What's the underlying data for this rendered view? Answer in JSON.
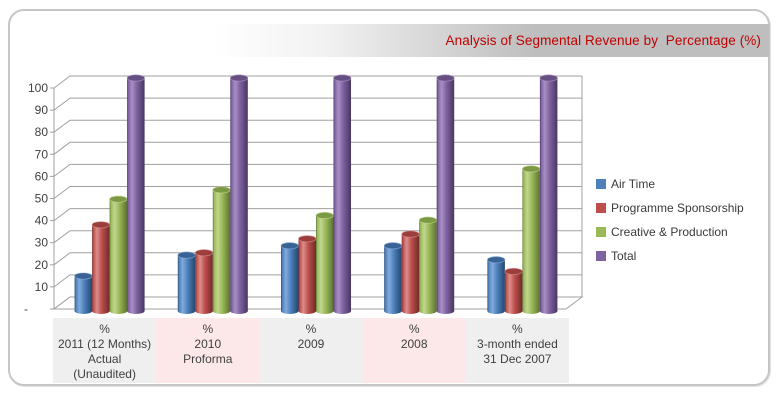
{
  "title_bar": {
    "text": "Analysis of Segmental Revenue by  Percentage (%)",
    "text_color": "#C00000",
    "bar_color": "#BEBEBE"
  },
  "chart_data": {
    "type": "bar",
    "style": "3d-cylinder",
    "title": "Analysis of Segmental Revenue by  Percentage (%)",
    "grid": true,
    "legend_position": "right",
    "xlabel": "",
    "ylabel": "",
    "ylim": [
      0,
      100
    ],
    "y_axis": {
      "min": 0,
      "max": 100,
      "step": 10,
      "tick_labels": [
        "-",
        "10",
        "20",
        "30",
        "40",
        "50",
        "60",
        "70",
        "80",
        "90",
        "100"
      ]
    },
    "categories": [
      {
        "label_lines": [
          "%",
          "2011 (12 Months)",
          "Actual",
          "(Unaudited)"
        ],
        "bg": "#EFEFEF"
      },
      {
        "label_lines": [
          "%",
          "2010",
          "Proforma"
        ],
        "bg": "#FCE8E8"
      },
      {
        "label_lines": [
          "%",
          "2009"
        ],
        "bg": "#EFEFEF"
      },
      {
        "label_lines": [
          "%",
          "2008"
        ],
        "bg": "#FCE8E8"
      },
      {
        "label_lines": [
          "%",
          "3-month ended",
          "31 Dec 2007"
        ],
        "bg": "#EFEFEF"
      }
    ],
    "series": [
      {
        "name": "Air Time",
        "values": [
          15,
          24,
          28,
          28,
          22
        ],
        "fill": "#4E81BC",
        "light": "#82AADC",
        "dark": "#24466E",
        "cap": "#3A6395",
        "rim": "#8FB2DF"
      },
      {
        "name": "Programme Sponsorship",
        "values": [
          37,
          25,
          31,
          33,
          17
        ],
        "fill": "#BF4F4C",
        "light": "#D98F8D",
        "dark": "#6E2B29",
        "cap": "#9C3E3B",
        "rim": "#DD9A98"
      },
      {
        "name": "Creative & Production",
        "values": [
          48,
          52,
          41,
          39,
          61
        ],
        "fill": "#9ABA58",
        "light": "#C2D591",
        "dark": "#5C7134",
        "cap": "#7C9A43",
        "rim": "#C9DA9E"
      },
      {
        "name": "Total",
        "values": [
          100,
          100,
          100,
          100,
          100
        ],
        "fill": "#7F63A1",
        "light": "#A98FC4",
        "dark": "#473661",
        "cap": "#655081",
        "rim": "#B29AC9"
      }
    ],
    "grid_color": "#A0A0A0"
  }
}
